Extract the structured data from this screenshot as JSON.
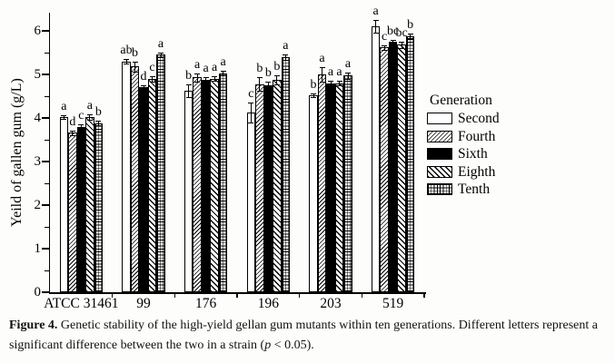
{
  "figure": {
    "caption_label": "Figure 4.",
    "caption_text": " Genetic stability of the high-yield gellan gum mutants within ten generations. Different letters represent a significant difference between the two in a strain (",
    "caption_p": "p",
    "caption_tail": " < 0.05)."
  },
  "chart_data": {
    "type": "bar",
    "title": "",
    "xlabel": "",
    "ylabel": "Yeild of gallen gum (g/L)",
    "ylim": [
      0,
      6.4
    ],
    "yticks": [
      0,
      1,
      2,
      3,
      4,
      5,
      6
    ],
    "ytick_minor_step": 0.5,
    "grid": false,
    "legend_position": "right",
    "legend_title": "Generation",
    "categories": [
      "ATCC 31461",
      "99",
      "176",
      "196",
      "203",
      "519"
    ],
    "series": [
      {
        "name": "Second",
        "pattern": "plain",
        "values": [
          4.02,
          5.3,
          4.63,
          4.12,
          4.52,
          6.1
        ],
        "errors": [
          0.04,
          0.06,
          0.15,
          0.23,
          0.04,
          0.15
        ],
        "letters": [
          "a",
          "ab",
          "b",
          "c",
          "b",
          "a"
        ]
      },
      {
        "name": "Fourth",
        "pattern": "diag-up",
        "values": [
          3.66,
          5.18,
          4.93,
          4.78,
          5.0,
          5.62
        ],
        "errors": [
          0.05,
          0.12,
          0.1,
          0.15,
          0.16,
          0.05
        ],
        "letters": [
          "d",
          "b",
          "a",
          "b",
          "a",
          "c"
        ]
      },
      {
        "name": "Sixth",
        "pattern": "solid",
        "values": [
          3.8,
          4.7,
          4.87,
          4.75,
          4.8,
          5.75
        ],
        "errors": [
          0.05,
          0.05,
          0.06,
          0.08,
          0.05,
          0.05
        ],
        "letters": [
          "c",
          "d",
          "a",
          "b",
          "a",
          "bc"
        ]
      },
      {
        "name": "Eighth",
        "pattern": "diag-down",
        "values": [
          4.02,
          4.9,
          4.9,
          4.88,
          4.8,
          5.68
        ],
        "errors": [
          0.06,
          0.06,
          0.05,
          0.1,
          0.05,
          0.08
        ],
        "letters": [
          "a",
          "c",
          "a",
          "b",
          "a",
          "bc"
        ]
      },
      {
        "name": "Tenth",
        "pattern": "grid",
        "values": [
          3.88,
          5.45,
          5.03,
          5.4,
          4.97,
          5.88
        ],
        "errors": [
          0.05,
          0.06,
          0.06,
          0.06,
          0.07,
          0.05
        ],
        "letters": [
          "b",
          "a",
          "a",
          "a",
          "a",
          "b"
        ]
      }
    ]
  }
}
